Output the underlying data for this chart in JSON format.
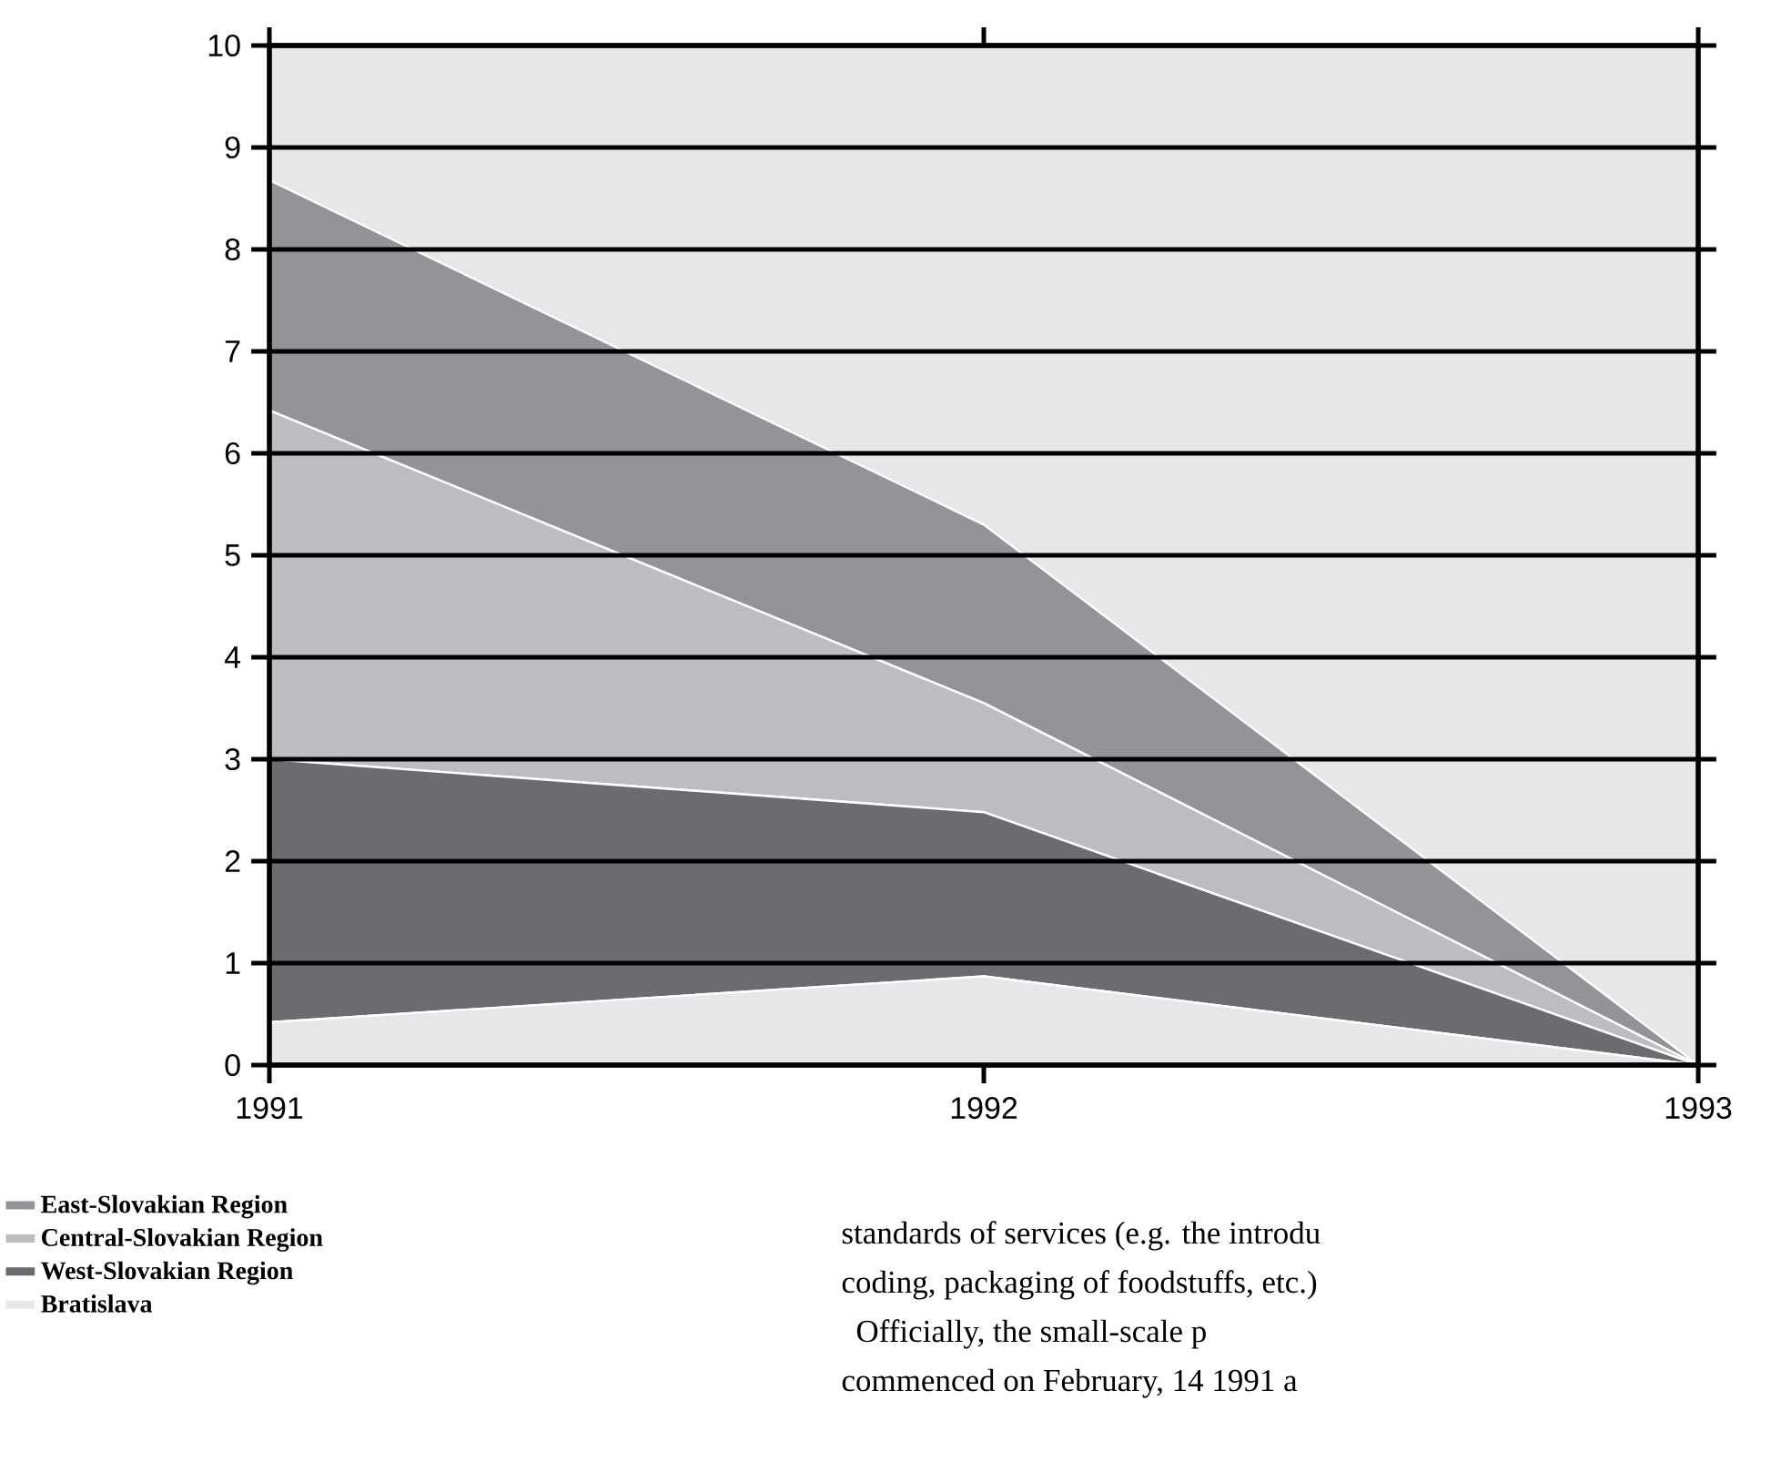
{
  "chart_data": {
    "type": "area",
    "stacked": true,
    "x": [
      1991,
      1992,
      1993
    ],
    "xlim": [
      1991,
      1993
    ],
    "xticks": [
      1991,
      1992,
      1993
    ],
    "ylim": [
      0,
      10
    ],
    "yticks": [
      0,
      1,
      2,
      3,
      4,
      5,
      6,
      7,
      8,
      9,
      10
    ],
    "grid": "y",
    "legend": "bottom left",
    "series": [
      {
        "name": "Bratislava",
        "color": "#e6e7e8",
        "values": [
          0.42,
          0.87,
          0
        ]
      },
      {
        "name": "West-Slovakian Region",
        "color": "#6b6c70",
        "values": [
          2.58,
          1.61,
          0
        ]
      },
      {
        "name": "Central-Slovakian Region",
        "color": "#bcbdc0",
        "values": [
          3.42,
          1.07,
          0
        ]
      },
      {
        "name": "East-Slovakian Region",
        "color": "#939498",
        "values": [
          2.26,
          1.75,
          0
        ]
      }
    ],
    "annotations": [
      "standards of services (e.g. the introdu",
      "coding, packaging of foodstuffs, etc.)",
      "Officially, the small-scale p",
      "commenced on February, 14 1991 a"
    ]
  }
}
